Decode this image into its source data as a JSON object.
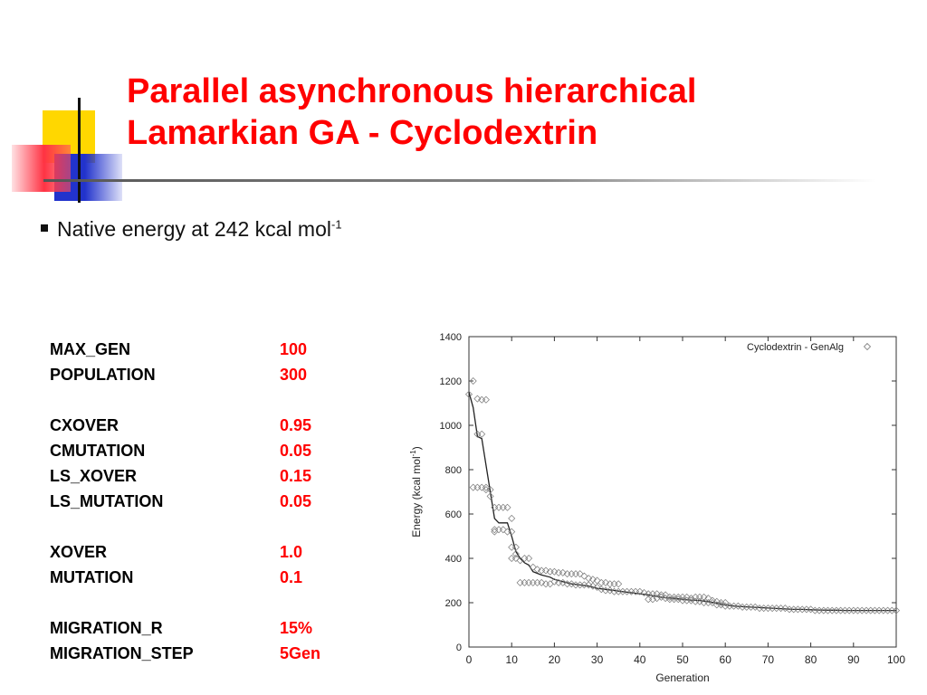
{
  "title": {
    "line1": "Parallel asynchronous hierarchical",
    "line2": "Lamarkian GA - Cyclodextrin",
    "color": "#ff0000"
  },
  "bullet": {
    "text": "Native energy at 242 kcal mol",
    "superscript": "-1"
  },
  "params": {
    "value_color": "#ff0000",
    "groups": [
      [
        {
          "name": "MAX_GEN",
          "value": "100"
        },
        {
          "name": "POPULATION",
          "value": "300"
        }
      ],
      [
        {
          "name": "CXOVER",
          "value": "0.95"
        },
        {
          "name": "CMUTATION",
          "value": "0.05"
        },
        {
          "name": "LS_XOVER",
          "value": "0.15"
        },
        {
          "name": "LS_MUTATION",
          "value": "0.05"
        }
      ],
      [
        {
          "name": "XOVER",
          "value": "1.0"
        },
        {
          "name": "MUTATION",
          "value": "0.1"
        }
      ],
      [
        {
          "name": "MIGRATION_R",
          "value": "15%"
        },
        {
          "name": "MIGRATION_STEP",
          "value": "5Gen"
        }
      ]
    ]
  },
  "decoration_colors": {
    "yellow": "#ffd700",
    "blue": "#2233cc",
    "red": "#ff3344",
    "rule": "#555555"
  },
  "chart_data": {
    "type": "scatter",
    "title": "",
    "xlabel": "Generation",
    "ylabel": "Energy (kcal mol",
    "ylabel_sup": "-1",
    "ylabel_suffix": ")",
    "xlim": [
      0,
      100
    ],
    "ylim": [
      0,
      1400
    ],
    "xticks": [
      0,
      10,
      20,
      30,
      40,
      50,
      60,
      70,
      80,
      90,
      100
    ],
    "yticks": [
      0,
      200,
      400,
      600,
      800,
      1000,
      1200,
      1400
    ],
    "grid": false,
    "legend": {
      "label": "Cyclodextrin - GenAlg",
      "position": "top-right"
    },
    "series": [
      {
        "name": "Cyclodextrin - GenAlg",
        "marker": "diamond",
        "points": [
          [
            0,
            1140
          ],
          [
            1,
            1200
          ],
          [
            2,
            1120
          ],
          [
            3,
            1115
          ],
          [
            4,
            1115
          ],
          [
            1,
            720
          ],
          [
            2,
            720
          ],
          [
            3,
            720
          ],
          [
            4,
            710
          ],
          [
            2,
            960
          ],
          [
            3,
            960
          ],
          [
            4,
            720
          ],
          [
            5,
            710
          ],
          [
            5,
            680
          ],
          [
            6,
            630
          ],
          [
            7,
            630
          ],
          [
            8,
            630
          ],
          [
            9,
            630
          ],
          [
            6,
            530
          ],
          [
            6,
            520
          ],
          [
            7,
            530
          ],
          [
            8,
            530
          ],
          [
            9,
            520
          ],
          [
            10,
            580
          ],
          [
            10,
            520
          ],
          [
            10,
            450
          ],
          [
            11,
            450
          ],
          [
            11,
            420
          ],
          [
            10,
            400
          ],
          [
            11,
            400
          ],
          [
            12,
            390
          ],
          [
            13,
            400
          ],
          [
            14,
            400
          ],
          [
            12,
            290
          ],
          [
            13,
            290
          ],
          [
            14,
            290
          ],
          [
            15,
            290
          ],
          [
            16,
            290
          ],
          [
            17,
            290
          ],
          [
            18,
            285
          ],
          [
            19,
            285
          ],
          [
            15,
            360
          ],
          [
            16,
            350
          ],
          [
            17,
            345
          ],
          [
            18,
            345
          ],
          [
            19,
            340
          ],
          [
            20,
            340
          ],
          [
            21,
            335
          ],
          [
            22,
            335
          ],
          [
            23,
            330
          ],
          [
            24,
            330
          ],
          [
            25,
            330
          ],
          [
            26,
            330
          ],
          [
            27,
            320
          ],
          [
            28,
            310
          ],
          [
            29,
            305
          ],
          [
            30,
            300
          ],
          [
            20,
            295
          ],
          [
            21,
            290
          ],
          [
            22,
            290
          ],
          [
            23,
            285
          ],
          [
            24,
            285
          ],
          [
            25,
            280
          ],
          [
            26,
            280
          ],
          [
            27,
            280
          ],
          [
            28,
            280
          ],
          [
            29,
            275
          ],
          [
            30,
            270
          ],
          [
            31,
            290
          ],
          [
            32,
            290
          ],
          [
            33,
            285
          ],
          [
            34,
            285
          ],
          [
            35,
            285
          ],
          [
            31,
            260
          ],
          [
            32,
            255
          ],
          [
            33,
            255
          ],
          [
            34,
            250
          ],
          [
            35,
            250
          ],
          [
            36,
            250
          ],
          [
            37,
            250
          ],
          [
            38,
            250
          ],
          [
            39,
            250
          ],
          [
            40,
            250
          ],
          [
            41,
            245
          ],
          [
            42,
            240
          ],
          [
            43,
            240
          ],
          [
            44,
            240
          ],
          [
            45,
            235
          ],
          [
            46,
            235
          ],
          [
            42,
            215
          ],
          [
            43,
            215
          ],
          [
            44,
            220
          ],
          [
            45,
            225
          ],
          [
            46,
            220
          ],
          [
            47,
            225
          ],
          [
            48,
            225
          ],
          [
            49,
            225
          ],
          [
            50,
            225
          ],
          [
            51,
            225
          ],
          [
            52,
            220
          ],
          [
            53,
            225
          ],
          [
            54,
            225
          ],
          [
            55,
            225
          ],
          [
            56,
            220
          ],
          [
            57,
            210
          ],
          [
            47,
            215
          ],
          [
            48,
            215
          ],
          [
            49,
            215
          ],
          [
            50,
            210
          ],
          [
            51,
            210
          ],
          [
            52,
            210
          ],
          [
            53,
            205
          ],
          [
            54,
            205
          ],
          [
            55,
            200
          ],
          [
            56,
            200
          ],
          [
            57,
            200
          ],
          [
            58,
            205
          ],
          [
            59,
            200
          ],
          [
            60,
            200
          ],
          [
            58,
            190
          ],
          [
            59,
            190
          ],
          [
            60,
            185
          ],
          [
            61,
            185
          ],
          [
            62,
            185
          ],
          [
            63,
            185
          ],
          [
            64,
            180
          ],
          [
            65,
            180
          ],
          [
            66,
            180
          ],
          [
            67,
            180
          ],
          [
            68,
            175
          ],
          [
            69,
            175
          ],
          [
            70,
            175
          ],
          [
            71,
            175
          ],
          [
            72,
            175
          ],
          [
            73,
            175
          ],
          [
            74,
            175
          ],
          [
            75,
            170
          ],
          [
            76,
            170
          ],
          [
            77,
            170
          ],
          [
            78,
            170
          ],
          [
            79,
            170
          ],
          [
            80,
            170
          ],
          [
            81,
            165
          ],
          [
            82,
            165
          ],
          [
            83,
            165
          ],
          [
            84,
            165
          ],
          [
            85,
            165
          ],
          [
            86,
            165
          ],
          [
            87,
            165
          ],
          [
            88,
            165
          ],
          [
            89,
            165
          ],
          [
            90,
            165
          ],
          [
            91,
            165
          ],
          [
            92,
            165
          ],
          [
            93,
            165
          ],
          [
            94,
            165
          ],
          [
            95,
            165
          ],
          [
            96,
            165
          ],
          [
            97,
            165
          ],
          [
            98,
            165
          ],
          [
            99,
            165
          ],
          [
            100,
            165
          ]
        ]
      },
      {
        "name": "",
        "style": "line",
        "points": [
          [
            0,
            1150
          ],
          [
            1,
            1080
          ],
          [
            2,
            950
          ],
          [
            3,
            940
          ],
          [
            4,
            820
          ],
          [
            5,
            700
          ],
          [
            6,
            580
          ],
          [
            7,
            560
          ],
          [
            8,
            560
          ],
          [
            9,
            560
          ],
          [
            10,
            500
          ],
          [
            11,
            430
          ],
          [
            12,
            400
          ],
          [
            13,
            380
          ],
          [
            14,
            370
          ],
          [
            15,
            340
          ],
          [
            17,
            325
          ],
          [
            19,
            315
          ],
          [
            20,
            305
          ],
          [
            22,
            295
          ],
          [
            24,
            285
          ],
          [
            26,
            280
          ],
          [
            28,
            275
          ],
          [
            30,
            265
          ],
          [
            32,
            260
          ],
          [
            34,
            255
          ],
          [
            36,
            250
          ],
          [
            38,
            245
          ],
          [
            40,
            240
          ],
          [
            42,
            235
          ],
          [
            44,
            228
          ],
          [
            46,
            222
          ],
          [
            48,
            220
          ],
          [
            50,
            215
          ],
          [
            52,
            212
          ],
          [
            54,
            210
          ],
          [
            56,
            205
          ],
          [
            58,
            198
          ],
          [
            60,
            190
          ],
          [
            62,
            185
          ],
          [
            64,
            182
          ],
          [
            66,
            180
          ],
          [
            68,
            178
          ],
          [
            70,
            176
          ],
          [
            72,
            174
          ],
          [
            74,
            172
          ],
          [
            76,
            170
          ],
          [
            78,
            170
          ],
          [
            80,
            168
          ],
          [
            82,
            167
          ],
          [
            84,
            166
          ],
          [
            86,
            166
          ],
          [
            88,
            165
          ],
          [
            90,
            165
          ],
          [
            92,
            165
          ],
          [
            94,
            165
          ],
          [
            96,
            165
          ],
          [
            98,
            165
          ],
          [
            100,
            165
          ]
        ]
      }
    ]
  }
}
